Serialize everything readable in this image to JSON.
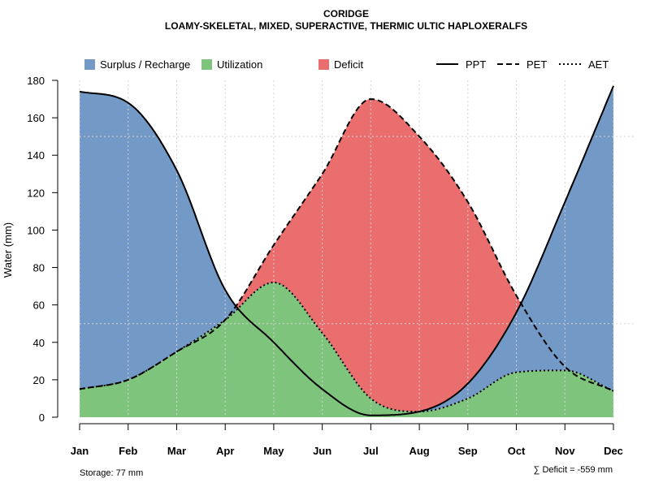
{
  "chart_data": {
    "type": "area",
    "title": "CORIDGE",
    "subtitle": "LOAMY-SKELETAL, MIXED, SUPERACTIVE, THERMIC ULTIC HAPLOXERALFS",
    "xlabel": "",
    "ylabel": "Water (mm)",
    "ylim": [
      0,
      180
    ],
    "yticks": [
      0,
      20,
      40,
      60,
      80,
      100,
      120,
      140,
      160,
      180
    ],
    "categories": [
      "Jan",
      "Feb",
      "Mar",
      "Apr",
      "May",
      "Jun",
      "Jul",
      "Aug",
      "Sep",
      "Oct",
      "Nov",
      "Dec"
    ],
    "series": [
      {
        "name": "PPT",
        "style": "solid",
        "values": [
          174,
          168,
          132,
          68,
          40,
          15,
          1,
          3,
          18,
          56,
          115,
          177
        ]
      },
      {
        "name": "PET",
        "style": "dashed",
        "values": [
          15,
          20,
          35,
          52,
          92,
          130,
          170,
          150,
          115,
          65,
          27,
          14
        ]
      },
      {
        "name": "AET",
        "style": "dotted",
        "values": [
          15,
          20,
          35,
          52,
          72,
          45,
          10,
          3,
          10,
          24,
          25,
          14
        ]
      }
    ],
    "fills": [
      {
        "name": "Surplus / Recharge",
        "color": "#7399C6"
      },
      {
        "name": "Utilization",
        "color": "#7FC47C"
      },
      {
        "name": "Deficit",
        "color": "#EB6E6F"
      }
    ],
    "legend": {
      "position": "top",
      "entries": [
        "Surplus / Recharge",
        "Utilization",
        "Deficit",
        "PPT",
        "PET",
        "AET"
      ]
    },
    "grid": true,
    "annotations": {
      "storage": "Storage: 77 mm",
      "deficit": "∑ Deficit = -559 mm"
    }
  }
}
